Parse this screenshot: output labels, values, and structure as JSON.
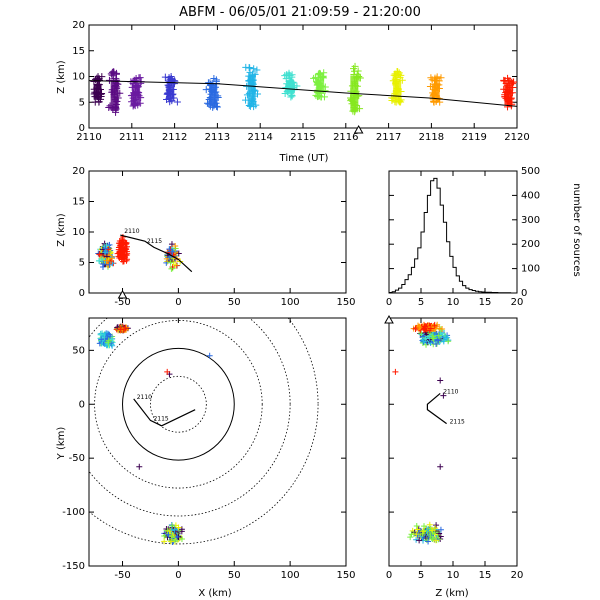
{
  "chart_data": [
    {
      "type": "scatter",
      "panel": "time-height",
      "title": "ABFM - 06/05/01 21:09:59 - 21:20:00",
      "xlabel": "Time (UT)",
      "ylabel": "Z (km)",
      "xlim": [
        2110,
        2120
      ],
      "ylim": [
        0,
        20
      ],
      "xticks": [
        "2110",
        "2111",
        "2112",
        "2113",
        "2114",
        "2115",
        "2116",
        "2117",
        "2118",
        "2119",
        "2120"
      ],
      "yticks": [
        "0",
        "5",
        "10",
        "15",
        "20"
      ],
      "trend_line": [
        [
          2110,
          9.2
        ],
        [
          2113,
          8.6
        ],
        [
          2116,
          6.8
        ],
        [
          2118,
          5.8
        ],
        [
          2120,
          4.2
        ]
      ],
      "marker_x": 2116.3,
      "clusters": [
        {
          "t": 2110.2,
          "z_min": 5,
          "z_max": 10,
          "color": "#3c0050"
        },
        {
          "t": 2110.6,
          "z_min": 3,
          "z_max": 11,
          "color": "#5a0a82"
        },
        {
          "t": 2111.1,
          "z_min": 4,
          "z_max": 10,
          "color": "#6a1aa0"
        },
        {
          "t": 2111.9,
          "z_min": 5,
          "z_max": 10,
          "color": "#3a3ad0"
        },
        {
          "t": 2112.9,
          "z_min": 4,
          "z_max": 10,
          "color": "#2a6ae0"
        },
        {
          "t": 2113.8,
          "z_min": 4,
          "z_max": 12,
          "color": "#20b4e6"
        },
        {
          "t": 2114.7,
          "z_min": 6,
          "z_max": 11,
          "color": "#40e0d0"
        },
        {
          "t": 2115.4,
          "z_min": 6,
          "z_max": 11,
          "color": "#7cf040"
        },
        {
          "t": 2116.2,
          "z_min": 3,
          "z_max": 12,
          "color": "#86e820"
        },
        {
          "t": 2117.2,
          "z_min": 5,
          "z_max": 11,
          "color": "#e8f000"
        },
        {
          "t": 2118.1,
          "z_min": 5,
          "z_max": 10,
          "color": "#ff9a00"
        },
        {
          "t": 2119.8,
          "z_min": 4,
          "z_max": 10,
          "color": "#ff1a00"
        }
      ]
    },
    {
      "type": "scatter",
      "panel": "x-z",
      "xlabel": "",
      "ylabel": "Z (km)",
      "xlim": [
        -80,
        150
      ],
      "ylim": [
        0,
        20
      ],
      "xticks": [
        "-50",
        "0",
        "50",
        "100",
        "150"
      ],
      "yticks": [
        "0",
        "5",
        "10",
        "15",
        "20"
      ],
      "track": [
        [
          -52,
          9.5
        ],
        [
          -30,
          8.5
        ],
        [
          -22,
          7.5
        ],
        [
          -10,
          6.5
        ],
        [
          0,
          5.5
        ],
        [
          12,
          3.5
        ]
      ],
      "annotations": [
        "2110",
        "2115"
      ],
      "marker_x": -50
    },
    {
      "type": "line",
      "panel": "histogram",
      "xlabel": "",
      "ylabel": "number of sources",
      "xlim": [
        0,
        20
      ],
      "ylim": [
        0,
        500
      ],
      "xticks": [
        "0",
        "5",
        "10",
        "15",
        "20"
      ],
      "yticks": [
        "0",
        "100",
        "200",
        "300",
        "400",
        "500"
      ],
      "x": [
        0.5,
        1,
        1.5,
        2,
        2.5,
        3,
        3.5,
        4,
        4.5,
        5,
        5.5,
        6,
        6.5,
        7,
        7.5,
        8,
        8.5,
        9,
        9.5,
        10,
        10.5,
        11,
        11.5,
        12,
        12.5,
        13,
        13.5,
        14,
        14.5,
        15,
        16,
        17,
        18,
        19,
        20
      ],
      "y": [
        2,
        5,
        12,
        20,
        35,
        55,
        75,
        105,
        140,
        185,
        250,
        330,
        400,
        460,
        470,
        430,
        360,
        290,
        210,
        150,
        105,
        70,
        48,
        30,
        20,
        14,
        10,
        7,
        5,
        4,
        3,
        2,
        1,
        1,
        0
      ]
    },
    {
      "type": "scatter",
      "panel": "plan-view",
      "xlabel": "X (km)",
      "ylabel": "Y (km)",
      "xlim": [
        -80,
        150
      ],
      "ylim": [
        -150,
        80
      ],
      "xticks": [
        "-50",
        "0",
        "50",
        "100",
        "150"
      ],
      "yticks": [
        "-150",
        "-100",
        "-50",
        "0",
        "50"
      ],
      "range_rings_km": [
        25,
        50,
        75,
        100,
        125
      ],
      "track": [
        [
          -40,
          5
        ],
        [
          -25,
          -15
        ],
        [
          -15,
          -20
        ],
        [
          15,
          -5
        ]
      ],
      "annotations": [
        "2110",
        "2115"
      ]
    },
    {
      "type": "scatter",
      "panel": "z-y",
      "xlabel": "Z (km)",
      "ylabel": "",
      "xlim": [
        0,
        20
      ],
      "ylim": [
        -150,
        80
      ],
      "xticks": [
        "0",
        "5",
        "10",
        "15",
        "20"
      ],
      "yticks": [
        "-150",
        "-100",
        "-50",
        "0",
        "50"
      ],
      "track": [
        [
          8,
          10
        ],
        [
          6,
          0
        ],
        [
          6,
          -5
        ],
        [
          9,
          -18
        ]
      ],
      "annotations": [
        "2110",
        "2115"
      ]
    }
  ]
}
